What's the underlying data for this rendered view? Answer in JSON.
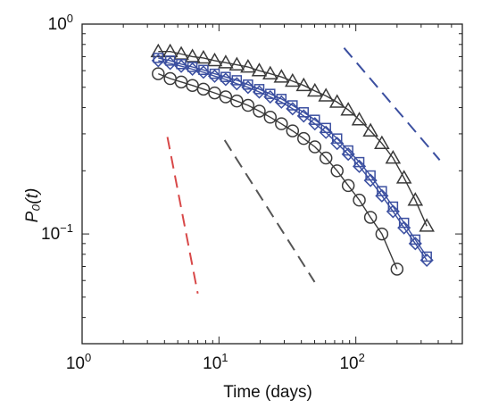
{
  "chart_data": {
    "type": "line",
    "title": "",
    "xlabel": "Time (days)",
    "ylabel": "P₀(t)",
    "xscale": "log",
    "yscale": "log",
    "xlim": [
      1,
      600
    ],
    "ylim": [
      0.03,
      1
    ],
    "x_ticks": [
      {
        "base": "10",
        "exp": "0",
        "value": 1
      },
      {
        "base": "10",
        "exp": "1",
        "value": 10
      },
      {
        "base": "10",
        "exp": "2",
        "value": 100
      }
    ],
    "y_ticks": [
      {
        "base": "10",
        "exp": "0",
        "value": 1
      },
      {
        "base": "10",
        "exp": "−1",
        "value": 0.1
      }
    ],
    "grid": false,
    "series": [
      {
        "marker": "triangle",
        "color": "#3a3a3a",
        "x": [
          3.6,
          4.4,
          5.3,
          6.4,
          7.7,
          9.3,
          11.2,
          13.5,
          16.3,
          19.7,
          23.7,
          28.6,
          34.5,
          41.6,
          50.2,
          60.5,
          73,
          88,
          106,
          128,
          155,
          187,
          225,
          272,
          330
        ],
        "y": [
          0.74,
          0.74,
          0.72,
          0.7,
          0.69,
          0.67,
          0.655,
          0.64,
          0.625,
          0.6,
          0.58,
          0.56,
          0.535,
          0.51,
          0.48,
          0.455,
          0.425,
          0.39,
          0.35,
          0.31,
          0.27,
          0.23,
          0.185,
          0.145,
          0.109
        ]
      },
      {
        "marker": "square",
        "color": "#3b4fa0",
        "x": [
          3.6,
          4.4,
          5.3,
          6.4,
          7.7,
          9.3,
          11.2,
          13.5,
          16.3,
          19.7,
          23.7,
          28.6,
          34.5,
          41.6,
          50.2,
          60.5,
          73,
          88,
          106,
          128,
          155,
          187,
          225,
          272,
          330
        ],
        "y": [
          0.69,
          0.67,
          0.645,
          0.625,
          0.605,
          0.58,
          0.56,
          0.54,
          0.515,
          0.49,
          0.465,
          0.44,
          0.41,
          0.38,
          0.35,
          0.32,
          0.285,
          0.25,
          0.22,
          0.19,
          0.16,
          0.135,
          0.113,
          0.094,
          0.078
        ]
      },
      {
        "marker": "diamond",
        "color": "#3b4fa0",
        "x": [
          3.6,
          4.4,
          5.3,
          6.4,
          7.7,
          9.3,
          11.2,
          13.5,
          16.3,
          19.7,
          23.7,
          28.6,
          34.5,
          41.6,
          50.2,
          60.5,
          73,
          88,
          106,
          128,
          155,
          187,
          225,
          272,
          330
        ],
        "y": [
          0.67,
          0.65,
          0.63,
          0.61,
          0.59,
          0.565,
          0.545,
          0.52,
          0.5,
          0.475,
          0.45,
          0.425,
          0.395,
          0.365,
          0.335,
          0.305,
          0.27,
          0.24,
          0.21,
          0.18,
          0.152,
          0.128,
          0.107,
          0.09,
          0.075
        ]
      },
      {
        "marker": "circle",
        "color": "#3a3a3a",
        "x": [
          3.6,
          4.4,
          5.3,
          6.4,
          7.7,
          9.3,
          11.2,
          13.5,
          16.3,
          19.7,
          23.7,
          28.6,
          34.5,
          41.6,
          50.2,
          60.5,
          73,
          88,
          106,
          128,
          155,
          200
        ],
        "y": [
          0.58,
          0.55,
          0.53,
          0.51,
          0.49,
          0.47,
          0.45,
          0.43,
          0.41,
          0.385,
          0.36,
          0.335,
          0.31,
          0.285,
          0.26,
          0.23,
          0.2,
          0.17,
          0.145,
          0.12,
          0.1,
          0.068
        ]
      }
    ],
    "reference_lines": [
      {
        "color": "#d84848",
        "x": [
          4.2,
          7.0
        ],
        "y": [
          0.29,
          0.052
        ]
      },
      {
        "color": "#555555",
        "x": [
          11.0,
          50.0
        ],
        "y": [
          0.28,
          0.059
        ]
      },
      {
        "color": "#3b4fa0",
        "x": [
          82.0,
          410.0
        ],
        "y": [
          0.77,
          0.225
        ]
      }
    ]
  }
}
